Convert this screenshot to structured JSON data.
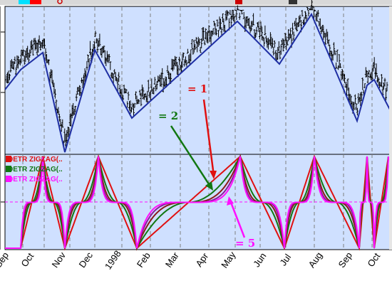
{
  "colors": {
    "background": "#ffffff",
    "panel_bg": "#cfe0ff",
    "grid": "#7f7f7f",
    "price_bar": "#000000",
    "zigzag": "#1f2fa3",
    "s1": "#e01010",
    "s2": "#117711",
    "s3": "#8b1a1a",
    "s4": "#8a1a9a",
    "s5": "#ff10ff",
    "baseline": "#ff10ff"
  },
  "legend": [
    {
      "text": "DETR ZIGZAG(..",
      "color": "#e01010"
    },
    {
      "text": "DETR ZIGZAG(..",
      "color": "#117711"
    },
    {
      "text": "DETR ZIGZAG(..",
      "color": "#ff10ff"
    }
  ],
  "annotations": [
    {
      "id": "1",
      "text": "= 1",
      "color": "#e01010"
    },
    {
      "id": "2",
      "text": "= 2",
      "color": "#117711"
    },
    {
      "id": "5",
      "text": "= 5",
      "color": "#ff10ff"
    }
  ],
  "chart_data": [
    {
      "type": "line",
      "panel": "price",
      "series": [
        {
          "kind": "zigzag",
          "x": [
            0,
            22,
            53,
            84,
            126,
            178,
            326,
            385,
            430,
            494,
            508,
            518,
            540
          ],
          "y": [
            0.44,
            0.58,
            0.7,
            0.0,
            0.72,
            0.24,
            0.92,
            0.62,
            0.97,
            0.22,
            0.47,
            0.51,
            0.3
          ]
        }
      ],
      "bar_count": 360
    },
    {
      "type": "line",
      "panel": "oscillator",
      "pivots": {
        "x": [
          0,
          22,
          53,
          84,
          131,
          185,
          330,
          392,
          434,
          497,
          508,
          518,
          538
        ],
        "dir": [
          -1,
          -1,
          1,
          -1,
          1,
          -1,
          1,
          -1,
          1,
          -1,
          1,
          -1,
          1
        ]
      },
      "series": [
        {
          "curvature": 1,
          "color": "#e01010"
        },
        {
          "curvature": 2,
          "color": "#117711"
        },
        {
          "curvature": 3,
          "color": "#8b1a1a"
        },
        {
          "curvature": 4,
          "color": "#8a1a9a"
        },
        {
          "curvature": 5,
          "color": "#ff10ff"
        }
      ]
    }
  ],
  "x_axis": {
    "tick_labels": [
      "Sep",
      "Oct",
      "Nov",
      "Dec",
      "1998",
      "Feb",
      "Mar",
      "Apr",
      "May",
      "Jun",
      "Jul",
      "Aug",
      "Sep",
      "Oct"
    ]
  }
}
